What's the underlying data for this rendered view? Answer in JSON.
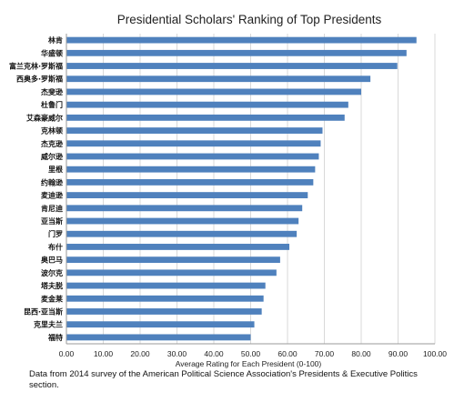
{
  "chart_data": {
    "type": "bar",
    "orientation": "horizontal",
    "title": "Presidential Scholars' Ranking of Top Presidents",
    "xlabel": "Average Rating for Each President (0-100)",
    "ylabel": "",
    "xlim": [
      0,
      100
    ],
    "xticks": [
      "0.00",
      "10.00",
      "20.00",
      "30.00",
      "40.00",
      "50.00",
      "60.00",
      "70.00",
      "80.00",
      "90.00",
      "100.00"
    ],
    "grid": "vertical",
    "legend": "none",
    "bar_color": "#4f81bd",
    "categories": [
      "林肯",
      "华盛顿",
      "富兰克林·罗斯福",
      "西奥多·罗斯福",
      "杰斐逊",
      "杜鲁门",
      "艾森豪威尔",
      "克林顿",
      "杰克逊",
      "威尔逊",
      "里根",
      "约翰逊",
      "麦迪逊",
      "肯尼迪",
      "亚当斯",
      "门罗",
      "布什",
      "奥巴马",
      "波尔克",
      "塔夫脱",
      "麦金莱",
      "昆西·亚当斯",
      "克里夫兰",
      "福特"
    ],
    "values": [
      95.0,
      92.3,
      89.8,
      82.5,
      80.0,
      76.5,
      75.5,
      69.5,
      69.0,
      68.5,
      67.5,
      67.0,
      65.5,
      64.0,
      63.0,
      62.5,
      60.5,
      58.0,
      57.0,
      54.0,
      53.5,
      53.0,
      51.0,
      50.0
    ]
  },
  "note": "Data from 2014 survey of the American Political Science Association's Presidents & Executive Politics section."
}
